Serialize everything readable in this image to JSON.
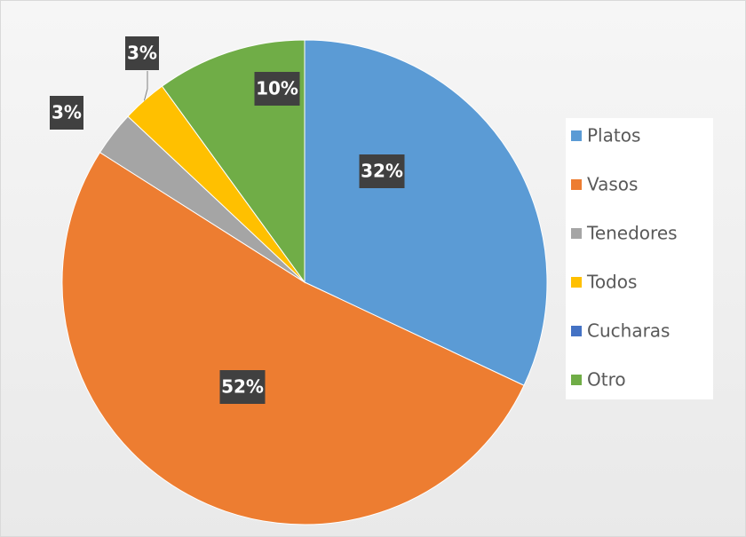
{
  "chart_data": {
    "type": "pie",
    "categories": [
      "Platos",
      "Vasos",
      "Tenedores",
      "Todos",
      "Cucharas",
      "Otro"
    ],
    "values": [
      32,
      52,
      3,
      3,
      0,
      10
    ],
    "value_labels": [
      "32%",
      "52%",
      "3%",
      "3%",
      null,
      "10%"
    ],
    "colors": [
      "#5b9bd5",
      "#ed7d31",
      "#a5a5a5",
      "#ffc000",
      "#4472c4",
      "#70ad47"
    ],
    "legend": "right"
  }
}
